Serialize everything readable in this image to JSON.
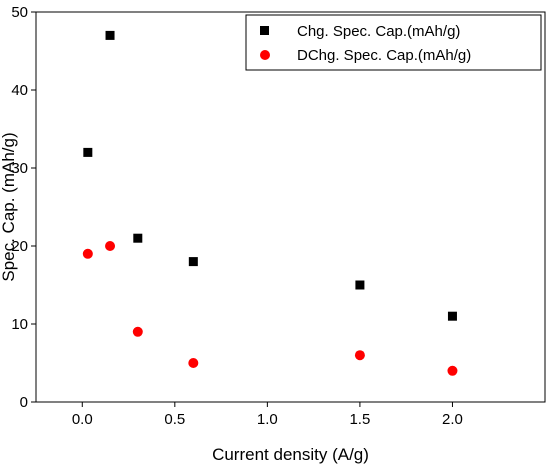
{
  "chart_data": {
    "type": "scatter",
    "xlabel": "Current density (A/g)",
    "ylabel": "Spec. Cap. (mAh/g)",
    "xlim": [
      -0.25,
      2.5
    ],
    "ylim": [
      0,
      50
    ],
    "xticks": [
      "0.0",
      "0.5",
      "1.0",
      "1.5",
      "2.0"
    ],
    "yticks": [
      "0",
      "10",
      "20",
      "30",
      "40",
      "50"
    ],
    "grid": false,
    "legend_position": "top-right",
    "series": [
      {
        "name": "Chg. Spec. Cap.(mAh/g)",
        "marker": "square",
        "color": "#000000",
        "x": [
          0.03,
          0.15,
          0.3,
          0.6,
          1.5,
          2.0
        ],
        "y": [
          32,
          47,
          21,
          18,
          15,
          11
        ]
      },
      {
        "name": "DChg. Spec. Cap.(mAh/g)",
        "marker": "circle",
        "color": "#ff0000",
        "x": [
          0.03,
          0.15,
          0.3,
          0.6,
          1.5,
          2.0
        ],
        "y": [
          19,
          20,
          9,
          5,
          6,
          4
        ]
      }
    ]
  }
}
